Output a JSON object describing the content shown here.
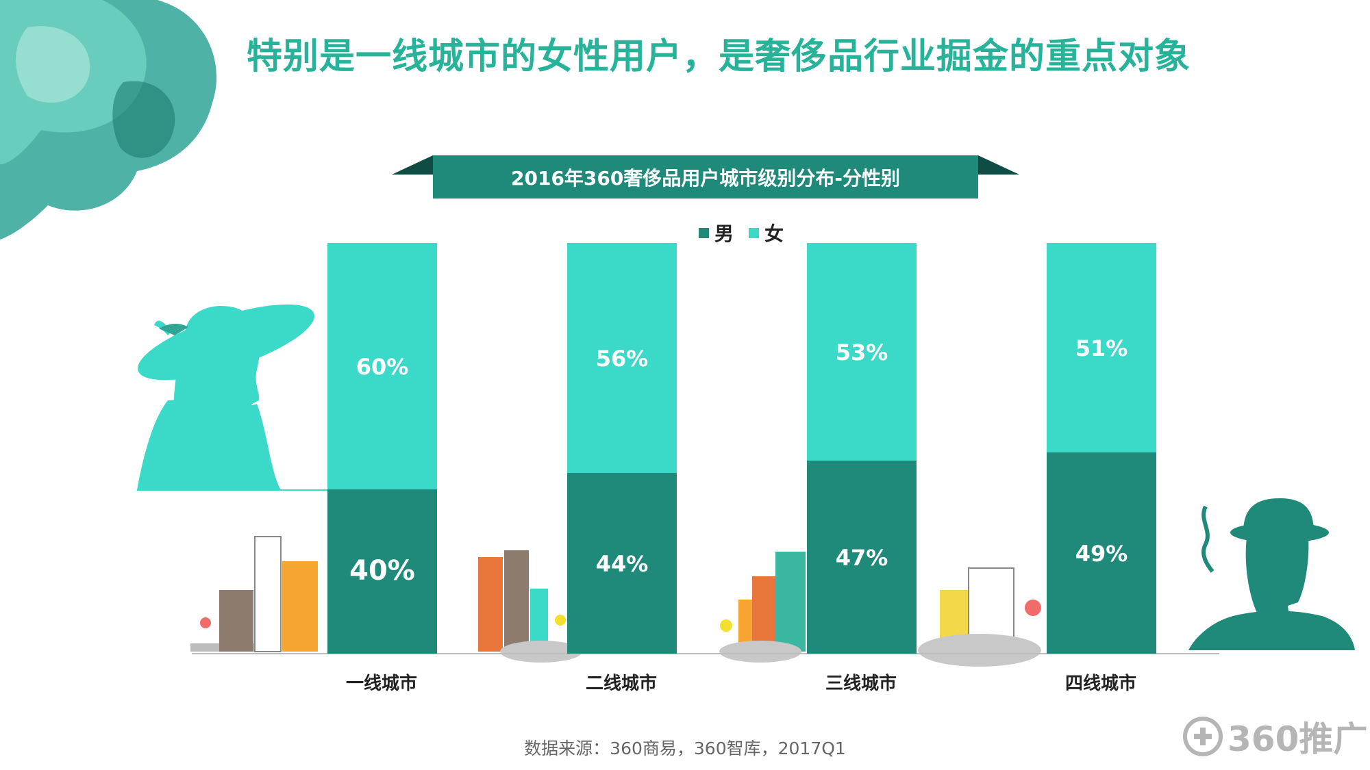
{
  "headline": "特别是一线城市的女性用户，是奢侈品行业掘金的重点对象",
  "source": "数据来源：360商易，360智库，2017Q1",
  "brand": "360推广",
  "colors": {
    "male": "#1f8a7a",
    "female": "#3ad9c8",
    "headline": "#26b39a",
    "title_bar": "#1f8a7a"
  },
  "chart_data": {
    "type": "bar",
    "stacked": true,
    "percent": true,
    "title": "2016年360奢侈品用户城市级别分布-分性别",
    "categories": [
      "一线城市",
      "二线城市",
      "三线城市",
      "四线城市"
    ],
    "series": [
      {
        "name": "男",
        "values": [
          40,
          44,
          47,
          49
        ],
        "labels": [
          "40%",
          "44%",
          "47%",
          "49%"
        ]
      },
      {
        "name": "女",
        "values": [
          60,
          56,
          53,
          51
        ],
        "labels": [
          "60%",
          "56%",
          "53%",
          "51%"
        ]
      }
    ],
    "ylim": [
      0,
      100
    ],
    "legend_position": "top-center",
    "grid": false
  }
}
